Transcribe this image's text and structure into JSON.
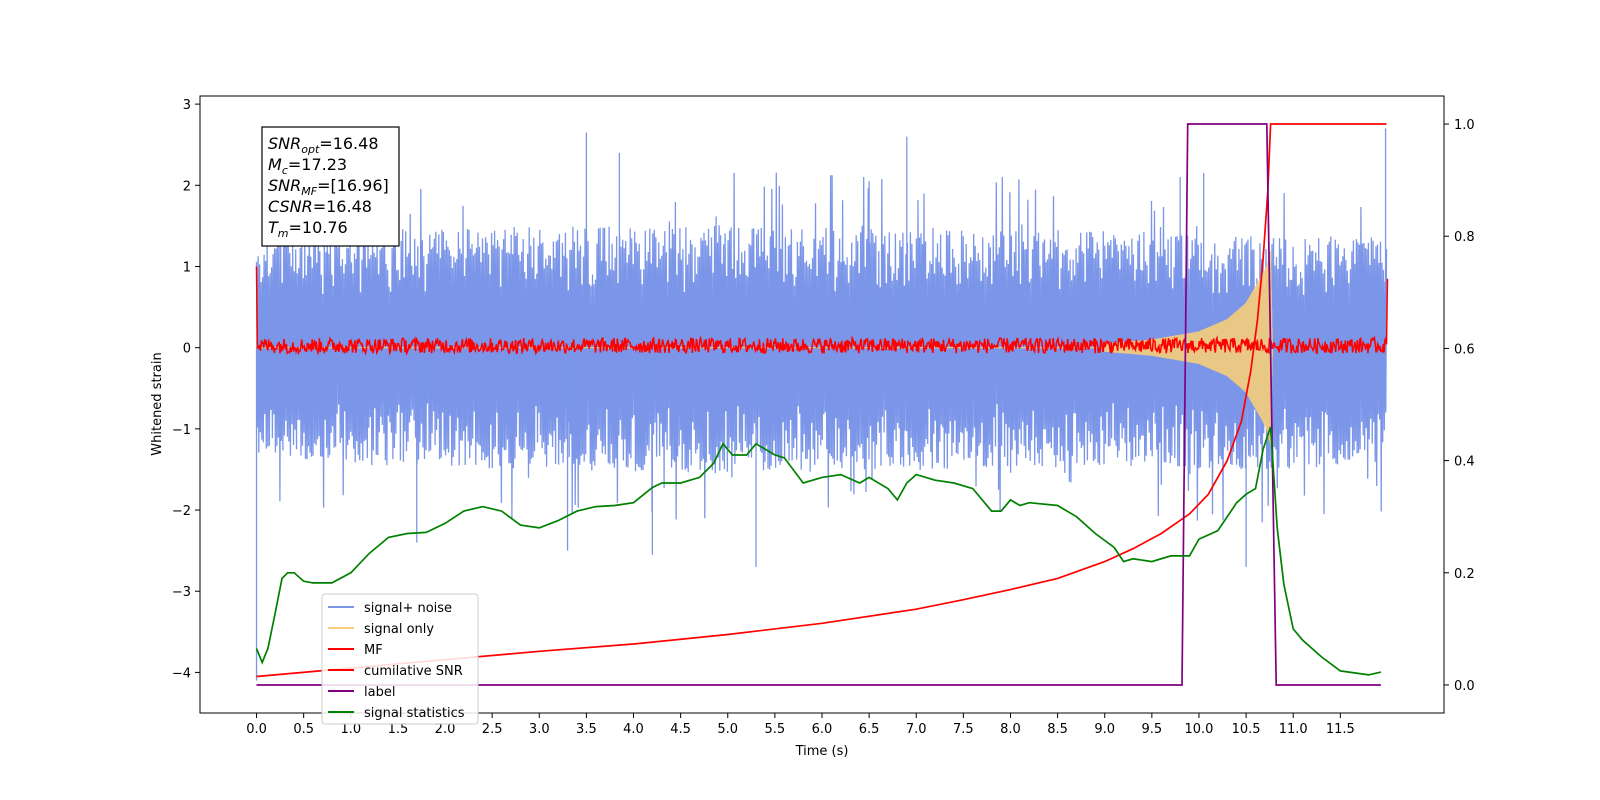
{
  "chart_data": {
    "type": "line",
    "xlabel": "Time (s)",
    "ylabel": "Whitened strain",
    "xlim": [
      -0.6,
      12.6
    ],
    "ylim": [
      -4.5,
      3.1
    ],
    "ylim_right": [
      -0.05,
      1.05
    ],
    "x_ticks": [
      0.0,
      0.5,
      1.0,
      1.5,
      2.0,
      2.5,
      3.0,
      3.5,
      4.0,
      4.5,
      5.0,
      5.5,
      6.0,
      6.5,
      7.0,
      7.5,
      8.0,
      8.5,
      9.0,
      9.5,
      10.0,
      10.5,
      11.0,
      11.5
    ],
    "x_tick_labels": [
      "0.0",
      "0.5",
      "1.0",
      "1.5",
      "2.0",
      "2.5",
      "3.0",
      "3.5",
      "4.0",
      "4.5",
      "5.0",
      "5.5",
      "6.0",
      "6.5",
      "7.0",
      "7.5",
      "8.0",
      "8.5",
      "9.0",
      "9.5",
      "10.0",
      "10.5",
      "11.0",
      "11.5"
    ],
    "y_ticks": [
      -4,
      -3,
      -2,
      -1,
      0,
      1,
      2,
      3
    ],
    "y_tick_labels": [
      "−4",
      "−3",
      "−2",
      "−1",
      "0",
      "1",
      "2",
      "3"
    ],
    "y_right_ticks": [
      0.0,
      0.2,
      0.4,
      0.6,
      0.8,
      1.0
    ],
    "y_right_tick_labels": [
      "0.0",
      "0.2",
      "0.4",
      "0.6",
      "0.8",
      "1.0"
    ],
    "grid": false,
    "legend_position": "lower-left",
    "annotation_box": {
      "position": "top-left",
      "lines": [
        {
          "sym": "SNR",
          "sub": "opt",
          "value": "=16.48"
        },
        {
          "sym": "M",
          "sub": "c",
          "value": "=17.23"
        },
        {
          "sym": "SNR",
          "sub": "MF",
          "value": "=[16.96]"
        },
        {
          "sym": "CSNR",
          "sub": "",
          "value": "=16.48"
        },
        {
          "sym": "T",
          "sub": "m",
          "value": "=10.76"
        }
      ]
    },
    "series": [
      {
        "name": "signal+ noise",
        "color": "#7b96e8",
        "axis": "left",
        "kind": "noise-band",
        "x_range": [
          0.0,
          11.99
        ],
        "envelope_upper": [
          [
            0.0,
            1.3
          ],
          [
            1.0,
            1.45
          ],
          [
            3.0,
            1.5
          ],
          [
            5.0,
            1.5
          ],
          [
            7.0,
            1.45
          ],
          [
            9.0,
            1.45
          ],
          [
            10.0,
            1.4
          ],
          [
            11.0,
            1.35
          ],
          [
            12.0,
            1.45
          ]
        ],
        "envelope_lower": [
          [
            0.0,
            -1.3
          ],
          [
            1.0,
            -1.45
          ],
          [
            3.0,
            -1.5
          ],
          [
            5.0,
            -1.55
          ],
          [
            7.0,
            -1.5
          ],
          [
            9.0,
            -1.45
          ],
          [
            10.0,
            -1.5
          ],
          [
            11.0,
            -1.5
          ],
          [
            12.0,
            -1.4
          ]
        ],
        "spikes": [
          [
            0.0,
            -4.1
          ],
          [
            3.5,
            2.65
          ],
          [
            5.3,
            -2.7
          ],
          [
            6.9,
            2.6
          ],
          [
            3.3,
            -2.5
          ],
          [
            4.2,
            -2.55
          ],
          [
            1.7,
            -2.4
          ],
          [
            9.8,
            2.1
          ],
          [
            10.5,
            -2.7
          ],
          [
            11.98,
            2.7
          ],
          [
            0.75,
            2.3
          ],
          [
            3.85,
            2.4
          ],
          [
            6.5,
            2.05
          ],
          [
            10.05,
            2.15
          ]
        ]
      },
      {
        "name": "signal only",
        "color": "#f5cc7a",
        "axis": "left",
        "kind": "chirp",
        "amplitude_points": [
          [
            0.0,
            0.0
          ],
          [
            9.0,
            0.05
          ],
          [
            9.5,
            0.1
          ],
          [
            10.0,
            0.2
          ],
          [
            10.3,
            0.35
          ],
          [
            10.5,
            0.55
          ],
          [
            10.65,
            0.85
          ],
          [
            10.72,
            1.0
          ],
          [
            10.76,
            1.2
          ],
          [
            10.78,
            0.0
          ],
          [
            12.0,
            0.0
          ]
        ]
      },
      {
        "name": "MF",
        "color": "#ff0000",
        "axis": "left",
        "kind": "noise-band-thin",
        "start_value": 1.0,
        "x_range": [
          0.0,
          11.99
        ],
        "band": [
          -0.07,
          0.12
        ],
        "end_value": 0.85
      },
      {
        "name": "cumilative SNR",
        "color": "#ff0000",
        "axis": "right",
        "points": [
          [
            0.0,
            0.015
          ],
          [
            1.0,
            0.03
          ],
          [
            2.0,
            0.045
          ],
          [
            3.0,
            0.06
          ],
          [
            4.0,
            0.073
          ],
          [
            5.0,
            0.09
          ],
          [
            6.0,
            0.11
          ],
          [
            7.0,
            0.135
          ],
          [
            7.5,
            0.152
          ],
          [
            8.0,
            0.17
          ],
          [
            8.5,
            0.19
          ],
          [
            9.0,
            0.22
          ],
          [
            9.3,
            0.243
          ],
          [
            9.6,
            0.27
          ],
          [
            9.9,
            0.305
          ],
          [
            10.1,
            0.34
          ],
          [
            10.3,
            0.4
          ],
          [
            10.45,
            0.47
          ],
          [
            10.55,
            0.56
          ],
          [
            10.62,
            0.65
          ],
          [
            10.68,
            0.76
          ],
          [
            10.73,
            0.88
          ],
          [
            10.76,
            1.0
          ],
          [
            11.99,
            1.0
          ]
        ]
      },
      {
        "name": "label",
        "color": "#800080",
        "axis": "right",
        "points": [
          [
            0.0,
            0.0
          ],
          [
            9.82,
            0.0
          ],
          [
            9.88,
            1.0
          ],
          [
            10.72,
            1.0
          ],
          [
            10.82,
            0.0
          ],
          [
            11.93,
            0.0
          ]
        ]
      },
      {
        "name": "signal statistics",
        "color": "#008000",
        "axis": "right",
        "points": [
          [
            0.0,
            0.065
          ],
          [
            0.06,
            0.04
          ],
          [
            0.12,
            0.065
          ],
          [
            0.2,
            0.13
          ],
          [
            0.27,
            0.19
          ],
          [
            0.33,
            0.2
          ],
          [
            0.4,
            0.2
          ],
          [
            0.5,
            0.185
          ],
          [
            0.6,
            0.182
          ],
          [
            0.8,
            0.182
          ],
          [
            1.0,
            0.2
          ],
          [
            1.2,
            0.235
          ],
          [
            1.4,
            0.263
          ],
          [
            1.6,
            0.27
          ],
          [
            1.8,
            0.272
          ],
          [
            2.0,
            0.288
          ],
          [
            2.2,
            0.31
          ],
          [
            2.4,
            0.318
          ],
          [
            2.6,
            0.31
          ],
          [
            2.8,
            0.285
          ],
          [
            3.0,
            0.28
          ],
          [
            3.2,
            0.293
          ],
          [
            3.4,
            0.31
          ],
          [
            3.6,
            0.318
          ],
          [
            3.8,
            0.32
          ],
          [
            4.0,
            0.325
          ],
          [
            4.2,
            0.352
          ],
          [
            4.3,
            0.36
          ],
          [
            4.5,
            0.36
          ],
          [
            4.7,
            0.37
          ],
          [
            4.85,
            0.395
          ],
          [
            4.95,
            0.43
          ],
          [
            5.05,
            0.41
          ],
          [
            5.2,
            0.41
          ],
          [
            5.3,
            0.43
          ],
          [
            5.4,
            0.42
          ],
          [
            5.5,
            0.41
          ],
          [
            5.6,
            0.405
          ],
          [
            5.8,
            0.36
          ],
          [
            6.0,
            0.37
          ],
          [
            6.2,
            0.375
          ],
          [
            6.4,
            0.36
          ],
          [
            6.5,
            0.37
          ],
          [
            6.7,
            0.35
          ],
          [
            6.8,
            0.33
          ],
          [
            6.9,
            0.36
          ],
          [
            7.0,
            0.375
          ],
          [
            7.2,
            0.365
          ],
          [
            7.4,
            0.36
          ],
          [
            7.6,
            0.35
          ],
          [
            7.8,
            0.31
          ],
          [
            7.9,
            0.31
          ],
          [
            8.0,
            0.33
          ],
          [
            8.1,
            0.32
          ],
          [
            8.2,
            0.325
          ],
          [
            8.5,
            0.32
          ],
          [
            8.7,
            0.3
          ],
          [
            8.9,
            0.27
          ],
          [
            9.1,
            0.245
          ],
          [
            9.2,
            0.22
          ],
          [
            9.3,
            0.225
          ],
          [
            9.5,
            0.22
          ],
          [
            9.7,
            0.23
          ],
          [
            9.9,
            0.23
          ],
          [
            10.0,
            0.26
          ],
          [
            10.2,
            0.275
          ],
          [
            10.4,
            0.325
          ],
          [
            10.5,
            0.34
          ],
          [
            10.6,
            0.35
          ],
          [
            10.68,
            0.42
          ],
          [
            10.76,
            0.46
          ],
          [
            10.83,
            0.28
          ],
          [
            10.9,
            0.18
          ],
          [
            11.0,
            0.1
          ],
          [
            11.1,
            0.08
          ],
          [
            11.3,
            0.05
          ],
          [
            11.5,
            0.025
          ],
          [
            11.8,
            0.018
          ],
          [
            11.93,
            0.023
          ]
        ]
      }
    ]
  }
}
